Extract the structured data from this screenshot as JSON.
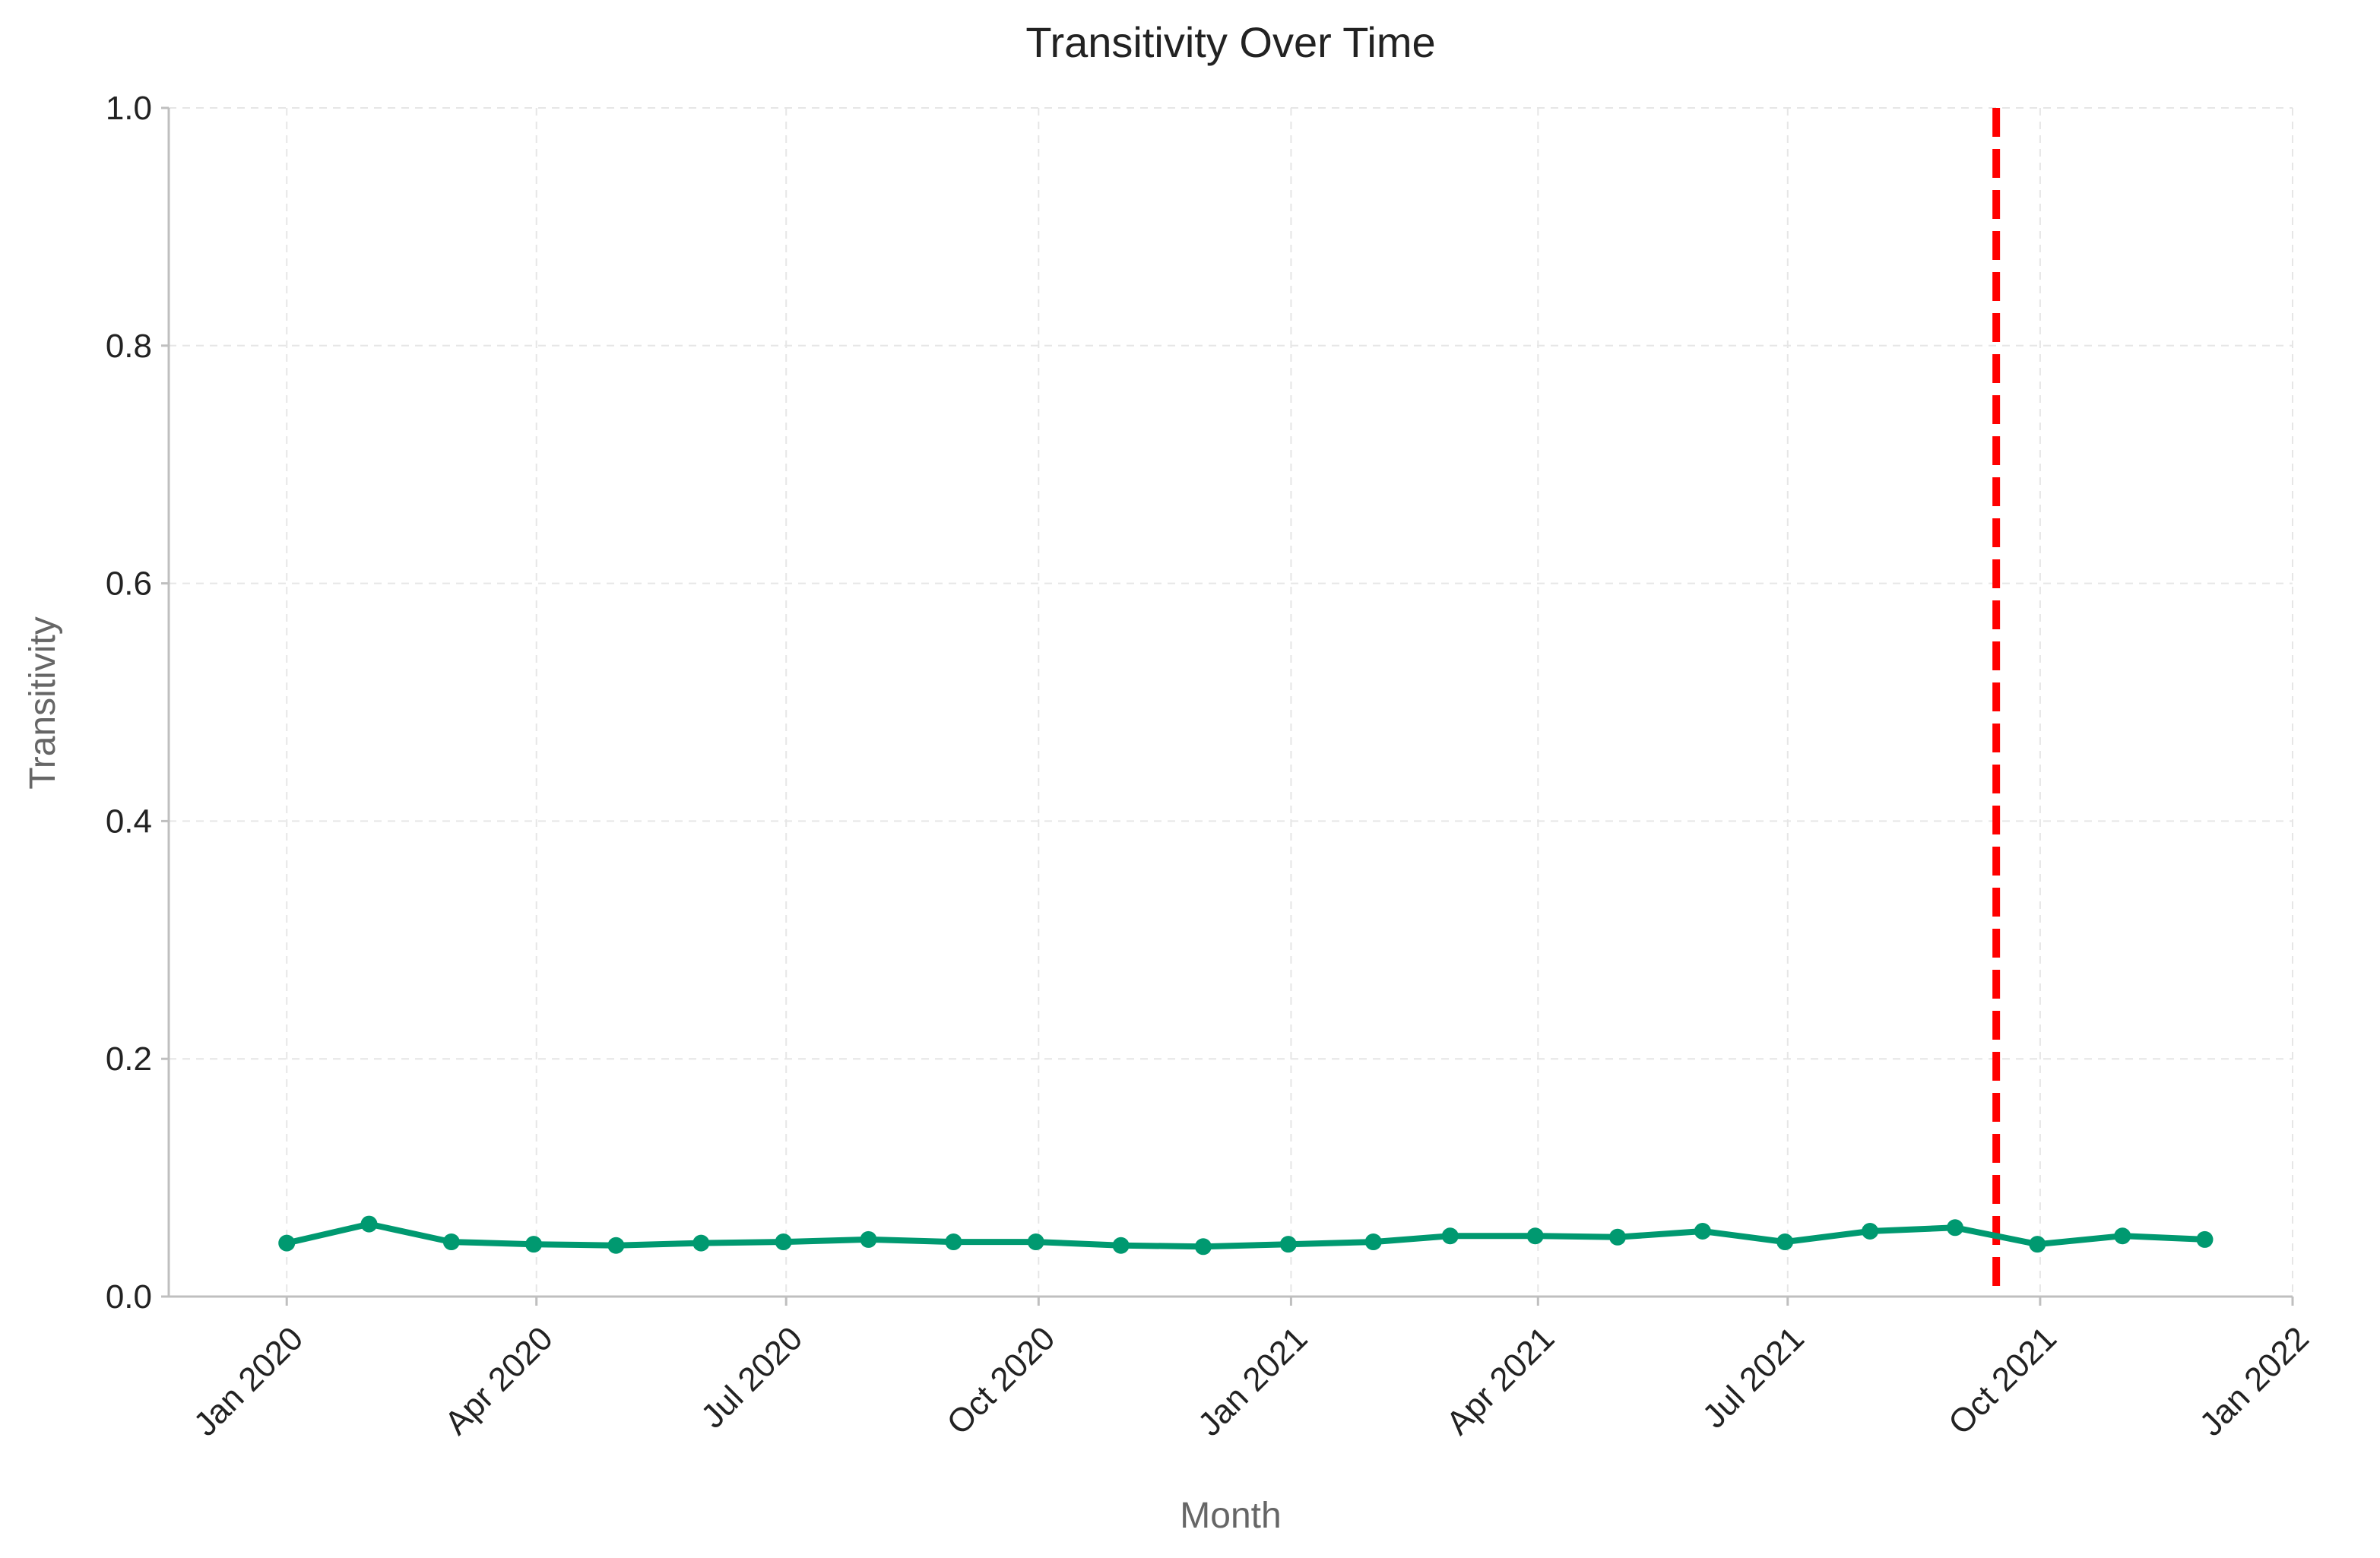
{
  "chart_data": {
    "type": "line",
    "title": "Transitivity Over Time",
    "xlabel": "Month",
    "ylabel": "Transitivity",
    "ylim": [
      0.0,
      1.0
    ],
    "xlim": [
      "2019-11-19",
      "2022-01-01"
    ],
    "grid": true,
    "x_tick_values": [
      "2020-01-01",
      "2020-04-01",
      "2020-07-01",
      "2020-10-01",
      "2021-01-01",
      "2021-04-01",
      "2021-07-01",
      "2021-10-01",
      "2022-01-01"
    ],
    "x_tick_labels": [
      "Jan 2020",
      "Apr 2020",
      "Jul 2020",
      "Oct 2020",
      "Jan 2021",
      "Apr 2021",
      "Jul 2021",
      "Oct 2021",
      "Jan 2022"
    ],
    "y_tick_values": [
      0.0,
      0.2,
      0.4,
      0.6,
      0.8,
      1.0
    ],
    "y_tick_labels": [
      "0.0",
      "0.2",
      "0.4",
      "0.6",
      "0.8",
      "1.0"
    ],
    "series": [
      {
        "color": "#009970",
        "x": [
          "2020-01-01",
          "2020-01-31",
          "2020-03-01",
          "2020-03-31",
          "2020-04-30",
          "2020-05-31",
          "2020-06-30",
          "2020-07-31",
          "2020-08-31",
          "2020-09-30",
          "2020-10-31",
          "2020-11-30",
          "2020-12-31",
          "2021-01-31",
          "2021-02-28",
          "2021-03-31",
          "2021-04-30",
          "2021-05-31",
          "2021-06-30",
          "2021-07-31",
          "2021-08-31",
          "2021-09-30",
          "2021-10-31",
          "2021-11-30"
        ],
        "values": [
          0.045,
          0.061,
          0.046,
          0.044,
          0.043,
          0.045,
          0.046,
          0.048,
          0.046,
          0.046,
          0.043,
          0.042,
          0.044,
          0.046,
          0.051,
          0.051,
          0.05,
          0.055,
          0.046,
          0.055,
          0.058,
          0.044,
          0.051,
          0.048
        ]
      }
    ],
    "annotations": [
      {
        "type": "vline",
        "x": "2021-09-15",
        "color": "#ff0000",
        "style": "dashed"
      }
    ]
  }
}
